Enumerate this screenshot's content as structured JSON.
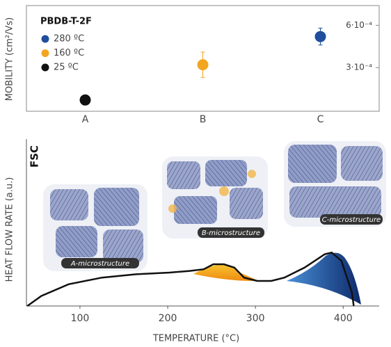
{
  "chart_data": [
    {
      "type": "scatter",
      "ylabel": "MOBILITY (cm²/Vs)",
      "legend_title": "PBDB-T-2F",
      "categories": [
        "A",
        "B",
        "C"
      ],
      "series": [
        {
          "name": "280 ºC",
          "color": "#1f4e9c",
          "values": [
            null,
            null,
            0.00052
          ],
          "errors": [
            null,
            null,
            6e-05
          ]
        },
        {
          "name": "160 ºC",
          "color": "#f2a51f",
          "values": [
            null,
            0.00032,
            null
          ],
          "errors": [
            null,
            9e-05,
            null
          ]
        },
        {
          "name": "25 ºC",
          "color": "#111111",
          "values": [
            7e-05,
            null,
            null
          ],
          "errors": [
            null,
            null,
            null
          ]
        }
      ],
      "ylim": [
        -1e-05,
        0.00074
      ],
      "yticks": [
        {
          "value": 0.0003,
          "label": "3·10⁻⁴"
        },
        {
          "value": 0.0006,
          "label": "6·10⁻⁴"
        }
      ]
    },
    {
      "type": "line",
      "annotation": "FSC",
      "xlabel": "TEMPERATURE (°C)",
      "ylabel": "HEAT FLOW RATE (a.u.)",
      "microstructures": [
        "A-microstructure",
        "B-microstructure",
        "C-microstructure"
      ],
      "x": [
        40,
        56,
        87,
        125,
        164,
        202,
        225,
        241,
        252,
        264,
        276,
        287,
        302,
        318,
        333,
        356,
        379,
        387,
        398,
        410,
        412
      ],
      "values": [
        0,
        0.06,
        0.13,
        0.17,
        0.19,
        0.2,
        0.21,
        0.22,
        0.25,
        0.25,
        0.23,
        0.17,
        0.15,
        0.15,
        0.17,
        0.23,
        0.31,
        0.32,
        0.27,
        0.08,
        0
      ],
      "color": "#111111",
      "xlim": [
        39,
        441
      ],
      "ylim": [
        0,
        1
      ],
      "xticks": [
        100,
        200,
        300,
        400
      ]
    }
  ]
}
